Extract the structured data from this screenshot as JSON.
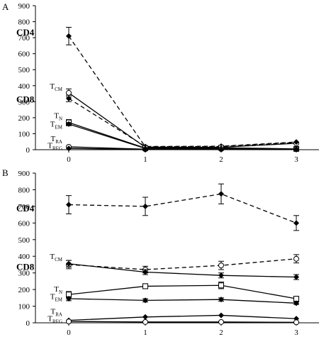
{
  "chart_data": [
    {
      "panel": "A",
      "type": "line",
      "x": [
        0,
        1,
        2,
        3
      ],
      "xticks": [
        "0",
        "1",
        "2",
        "3"
      ],
      "ylim": [
        0,
        900
      ],
      "yticks": [
        "0",
        "100",
        "200",
        "300",
        "400",
        "500",
        "600",
        "700",
        "800",
        "900"
      ],
      "labels": [
        {
          "main": "CD4",
          "sub": "",
          "style": "big",
          "anchor_y": 735
        },
        {
          "main": "T",
          "sub": "CM",
          "style": "small",
          "anchor_y": 400
        },
        {
          "main": "CD8",
          "sub": "",
          "style": "big",
          "anchor_y": 318
        },
        {
          "main": "T",
          "sub": "N",
          "style": "small",
          "anchor_y": 215
        },
        {
          "main": "T",
          "sub": "EM",
          "style": "small",
          "anchor_y": 162
        },
        {
          "main": "T",
          "sub": "RA",
          "style": "small",
          "anchor_y": 72
        },
        {
          "main": "T",
          "sub": "REG",
          "style": "small",
          "anchor_y": 28
        }
      ],
      "series": [
        {
          "dash": true,
          "marker": "diamond",
          "values": [
            710,
            18,
            20,
            45
          ],
          "err": [
            55,
            0,
            0,
            0
          ]
        },
        {
          "dash": false,
          "marker": "circle",
          "values": [
            355,
            15,
            15,
            40
          ],
          "err": [
            25,
            0,
            0,
            0
          ]
        },
        {
          "dash": true,
          "marker": "diamond",
          "values": [
            320,
            20,
            22,
            48
          ],
          "err": [
            20,
            0,
            0,
            0
          ]
        },
        {
          "dash": false,
          "marker": "square",
          "values": [
            170,
            10,
            12,
            5
          ],
          "err": [
            18,
            0,
            0,
            0
          ]
        },
        {
          "dash": false,
          "marker": "diamond",
          "values": [
            160,
            8,
            8,
            3
          ],
          "err": [
            10,
            0,
            0,
            0
          ]
        },
        {
          "dash": false,
          "marker": "circle",
          "values": [
            18,
            3,
            4,
            4
          ],
          "err": [
            0,
            0,
            0,
            0
          ]
        },
        {
          "dash": false,
          "marker": "diamond",
          "values": [
            8,
            2,
            2,
            2
          ],
          "err": [
            0,
            0,
            0,
            0
          ]
        }
      ]
    },
    {
      "panel": "B",
      "type": "line",
      "x": [
        0,
        1,
        2,
        3
      ],
      "xticks": [
        "0",
        "1",
        "2",
        "3"
      ],
      "ylim": [
        0,
        900
      ],
      "yticks": [
        "0",
        "100",
        "200",
        "300",
        "400",
        "500",
        "600",
        "700",
        "800",
        "900"
      ],
      "labels": [
        {
          "main": "CD4",
          "sub": "",
          "style": "big",
          "anchor_y": 690
        },
        {
          "main": "T",
          "sub": "CM",
          "style": "small",
          "anchor_y": 400
        },
        {
          "main": "CD8",
          "sub": "",
          "style": "big",
          "anchor_y": 340
        },
        {
          "main": "T",
          "sub": "N",
          "style": "small",
          "anchor_y": 205
        },
        {
          "main": "T",
          "sub": "EM",
          "style": "small",
          "anchor_y": 160
        },
        {
          "main": "T",
          "sub": "RA",
          "style": "small",
          "anchor_y": 70
        },
        {
          "main": "T",
          "sub": "REG",
          "style": "small",
          "anchor_y": 28
        }
      ],
      "series": [
        {
          "dash": true,
          "marker": "diamond",
          "values": [
            710,
            700,
            775,
            600
          ],
          "err": [
            55,
            55,
            60,
            45
          ]
        },
        {
          "dash": true,
          "marker": "circle",
          "values": [
            350,
            320,
            345,
            385
          ],
          "err": [
            25,
            20,
            25,
            25
          ]
        },
        {
          "dash": false,
          "marker": "diamond",
          "values": [
            355,
            305,
            285,
            275
          ],
          "err": [
            20,
            15,
            15,
            15
          ]
        },
        {
          "dash": false,
          "marker": "square",
          "values": [
            170,
            220,
            225,
            145
          ],
          "err": [
            18,
            15,
            20,
            10
          ]
        },
        {
          "dash": false,
          "marker": "diamond",
          "values": [
            145,
            135,
            140,
            118
          ],
          "err": [
            12,
            10,
            10,
            8
          ]
        },
        {
          "dash": false,
          "marker": "diamond",
          "values": [
            15,
            35,
            45,
            25
          ],
          "err": [
            0,
            0,
            0,
            0
          ]
        },
        {
          "dash": false,
          "marker": "circle",
          "values": [
            8,
            5,
            5,
            3
          ],
          "err": [
            0,
            0,
            0,
            0
          ]
        }
      ]
    }
  ]
}
